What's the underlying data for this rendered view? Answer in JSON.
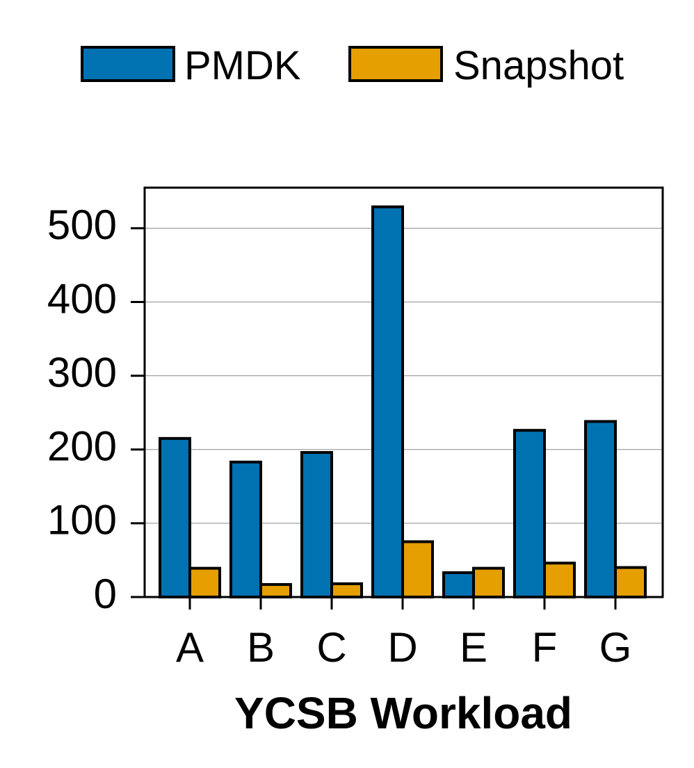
{
  "chart_data": {
    "type": "bar",
    "title": "",
    "xlabel": "YCSB Workload",
    "ylabel": "",
    "categories": [
      "A",
      "B",
      "C",
      "D",
      "E",
      "F",
      "G"
    ],
    "series": [
      {
        "name": "PMDK",
        "color": "#0072B2",
        "values": [
          215,
          183,
          196,
          529,
          33,
          226,
          238
        ]
      },
      {
        "name": "Snapshot",
        "color": "#E69F00",
        "values": [
          39,
          17,
          18,
          75,
          39,
          46,
          40
        ]
      }
    ],
    "ylim": [
      0,
      555
    ],
    "yticks": [
      0,
      100,
      200,
      300,
      400,
      500
    ],
    "grid": "horizontal",
    "legend_position": "top"
  }
}
